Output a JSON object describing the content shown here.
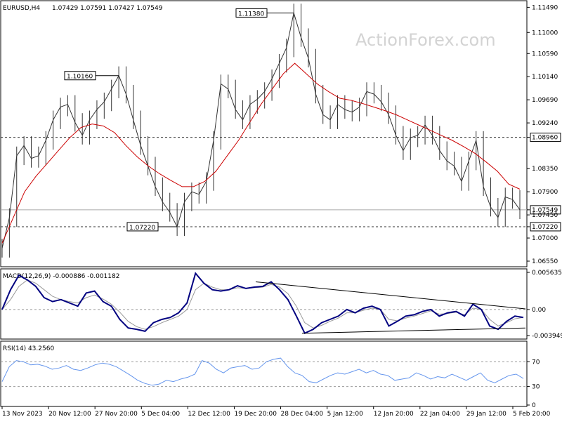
{
  "header": {
    "symbol": "EURUSD,H4",
    "ohlc": "1.07429 1.07591 1.07427 1.07549",
    "watermark": "ActionForex.com"
  },
  "colors": {
    "price_bars": "#333333",
    "moving_average": "#cc0000",
    "macd_line": "#000080",
    "macd_signal": "#999999",
    "rsi_line": "#6495ed",
    "level_lines": "#333333",
    "trendlines": "#000000"
  },
  "chart_data": [
    {
      "type": "line",
      "panel": "price",
      "title": "EURUSD,H4 1.07429 1.07591 1.07427 1.07549",
      "ylim": [
        1.0655,
        1.1155
      ],
      "y_ticks": [
        "1.11490",
        "1.11000",
        "1.10590",
        "1.10140",
        "1.09690",
        "1.09240",
        "1.08960",
        "1.08350",
        "1.07900",
        "1.07549",
        "1.07450",
        "1.07220",
        "1.07000",
        "1.06550"
      ],
      "x_tick_labels": [
        "13 Nov 2023",
        "20 Nov 12:00",
        "27 Nov 20:00",
        "5 Dec 04:00",
        "12 Dec 12:00",
        "19 Dec 20:00",
        "28 Dec 04:00",
        "5 Jan 12:00",
        "12 Jan 20:00",
        "22 Jan 04:00",
        "29 Jan 12:00",
        "5 Feb 20:00"
      ],
      "series": [
        {
          "values": [
            1.068,
            1.074,
            1.086,
            1.088,
            1.0855,
            1.086,
            1.089,
            1.093,
            1.0955,
            1.096,
            1.0925,
            1.09,
            1.093,
            1.095,
            1.0965,
            1.099,
            1.1016,
            1.098,
            1.093,
            1.088,
            1.084,
            1.08,
            1.077,
            1.075,
            1.0722,
            1.077,
            1.079,
            1.0785,
            1.081,
            1.089,
            1.1,
            1.099,
            1.095,
            1.093,
            1.096,
            1.097,
            1.0985,
            1.101,
            1.104,
            1.107,
            1.1138,
            1.109,
            1.105,
            1.098,
            1.094,
            1.093,
            1.096,
            1.095,
            1.0945,
            1.0955,
            1.0985,
            1.098,
            1.0965,
            1.094,
            1.09,
            1.087,
            1.0895,
            1.09,
            1.092,
            1.09,
            1.087,
            1.085,
            1.084,
            1.081,
            1.085,
            1.089,
            1.08,
            1.076,
            1.074,
            1.078,
            1.0775,
            1.0755
          ]
        },
        {
          "values": [
            1.069,
            1.074,
            1.079,
            1.082,
            1.0845,
            1.087,
            1.0895,
            1.0915,
            1.0922,
            1.0918,
            1.0905,
            1.088,
            1.0858,
            1.084,
            1.0825,
            1.0812,
            1.08,
            1.08,
            1.081,
            1.083,
            1.086,
            1.089,
            1.0925,
            1.096,
            1.099,
            1.102,
            1.104,
            1.102,
            1.1,
            1.0985,
            1.0972,
            1.0968,
            1.0962,
            1.0955,
            1.0948,
            1.094,
            1.093,
            1.092,
            1.091,
            1.09,
            1.089,
            1.0878,
            1.0865,
            1.0848,
            1.083,
            1.0805,
            1.0795
          ]
        }
      ],
      "annotations": [
        "1.10160",
        "1.11380",
        "1.07220"
      ]
    },
    {
      "type": "line",
      "panel": "macd",
      "title": "MACD(12,26,9) -0.000886 -0.001182",
      "ylim": [
        -0.003949,
        0.005635
      ],
      "y_ticks": [
        "0.005635",
        "0.00",
        "-0.003949"
      ],
      "series": [
        {
          "values": [
            0.0,
            0.003,
            0.0052,
            0.0045,
            0.0035,
            0.0018,
            0.0012,
            0.0015,
            0.001,
            0.0005,
            0.0025,
            0.0028,
            0.0012,
            0.0005,
            -0.0015,
            -0.0028,
            -0.003,
            -0.0033,
            -0.002,
            -0.0015,
            -0.0012,
            -0.0005,
            0.001,
            0.0055,
            0.004,
            0.003,
            0.0028,
            0.003,
            0.0036,
            0.0032,
            0.0034,
            0.0035,
            0.0042,
            0.003,
            0.0015,
            -0.001,
            -0.0036,
            -0.003,
            -0.002,
            -0.0015,
            -0.001,
            0.0,
            -0.0005,
            0.0002,
            0.0005,
            0.0,
            -0.0025,
            -0.0018,
            -0.001,
            -0.0008,
            -0.0003,
            0.0,
            -0.001,
            -0.0005,
            -0.0003,
            -0.001,
            0.0008,
            0.0,
            -0.0025,
            -0.003,
            -0.0018,
            -0.001,
            -0.0012
          ]
        },
        {
          "values": [
            0.0,
            0.0015,
            0.0035,
            0.0045,
            0.004,
            0.003,
            0.002,
            0.0015,
            0.0012,
            0.001,
            0.0018,
            0.0022,
            0.0016,
            0.0008,
            -0.0004,
            -0.0018,
            -0.0026,
            -0.003,
            -0.0026,
            -0.002,
            -0.0015,
            -0.001,
            0.0,
            0.003,
            0.004,
            0.0034,
            0.003,
            0.003,
            0.0033,
            0.0032,
            0.0033,
            0.0034,
            0.0038,
            0.0034,
            0.0024,
            0.0005,
            -0.002,
            -0.0028,
            -0.0024,
            -0.0018,
            -0.0013,
            -0.0005,
            -0.0005,
            -0.0001,
            0.0002,
            0.0,
            -0.0015,
            -0.0017,
            -0.0013,
            -0.001,
            -0.0006,
            -0.0002,
            -0.0007,
            -0.0006,
            -0.0004,
            -0.0008,
            0.0002,
            0.0,
            -0.0015,
            -0.0025,
            -0.002,
            -0.0014,
            -0.0012
          ]
        }
      ]
    },
    {
      "type": "line",
      "panel": "rsi",
      "title": "RSI(14) 43.2560",
      "ylim": [
        0,
        100
      ],
      "y_ticks": [
        "70",
        "30",
        "0"
      ],
      "series": [
        {
          "values": [
            38,
            62,
            72,
            70,
            65,
            66,
            63,
            58,
            60,
            64,
            58,
            56,
            60,
            65,
            68,
            66,
            62,
            55,
            48,
            40,
            35,
            32,
            34,
            40,
            38,
            42,
            45,
            50,
            72,
            68,
            58,
            52,
            60,
            62,
            64,
            58,
            60,
            70,
            74,
            76,
            62,
            52,
            48,
            38,
            36,
            42,
            48,
            52,
            50,
            54,
            58,
            52,
            56,
            50,
            48,
            40,
            42,
            44,
            52,
            48,
            42,
            46,
            44,
            50,
            45,
            40,
            46,
            52,
            40,
            36,
            42,
            48,
            50,
            43
          ]
        }
      ]
    }
  ]
}
